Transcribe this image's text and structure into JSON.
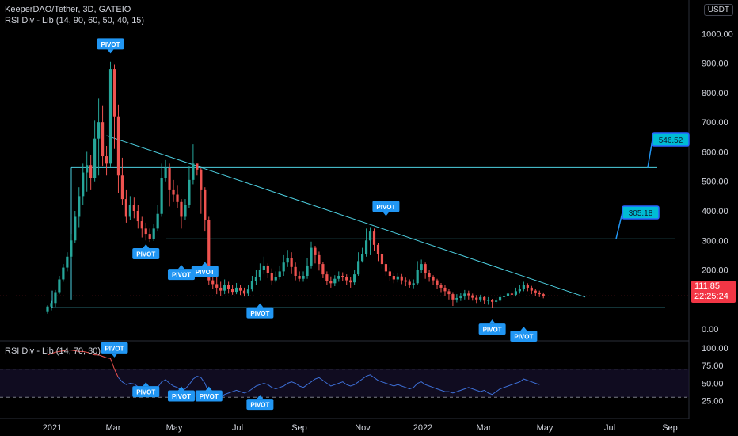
{
  "header": {
    "symbol_line": "KeeperDAO/Tether, 3D, GATEIO",
    "indicator_line": "RSI Div - Lib (14, 90, 60, 50, 40, 15)",
    "currency_badge": "USDT"
  },
  "rsi_panel": {
    "label": "RSI Div - Lib (14, 70, 30)"
  },
  "last_price": {
    "value": "111.85",
    "countdown": "22:25:24"
  },
  "colors": {
    "up": "#26a69a",
    "down": "#ef5350",
    "level": "#4dd0e1",
    "pivot": "#2196f3",
    "rsi_line": "#3d6fd6",
    "rsi_line_early": "#ef5350",
    "price_tag": "#f23645"
  },
  "chart_data": {
    "type": "candlestick",
    "title": "KeeperDAO/Tether, 3D, GATEIO",
    "y_price": {
      "range": [
        -40,
        1060
      ],
      "ticks": [
        "1000.00",
        "900.00",
        "800.00",
        "700.00",
        "600.00",
        "500.00",
        "400.00",
        "300.00",
        "200.00",
        "100.00",
        "0.00"
      ]
    },
    "x_axis": {
      "ticks": [
        "2021",
        "Mar",
        "May",
        "Jul",
        "Sep",
        "Nov",
        "2022",
        "Mar",
        "May",
        "Jul",
        "Sep"
      ]
    },
    "candles": [
      [
        60,
        76,
        52,
        80
      ],
      [
        76,
        88,
        63,
        95
      ],
      [
        88,
        125,
        75,
        132
      ],
      [
        125,
        168,
        118,
        180
      ],
      [
        168,
        208,
        160,
        220
      ],
      [
        208,
        245,
        195,
        260
      ],
      [
        245,
        300,
        238,
        322
      ],
      [
        300,
        380,
        290,
        400
      ],
      [
        380,
        450,
        345,
        480
      ],
      [
        450,
        530,
        420,
        560
      ],
      [
        530,
        555,
        465,
        600
      ],
      [
        555,
        510,
        470,
        590
      ],
      [
        510,
        645,
        500,
        705
      ],
      [
        645,
        700,
        520,
        780
      ],
      [
        700,
        585,
        550,
        755
      ],
      [
        585,
        560,
        520,
        620
      ],
      [
        560,
        880,
        548,
        905
      ],
      [
        880,
        720,
        610,
        895
      ],
      [
        720,
        520,
        460,
        760
      ],
      [
        520,
        440,
        420,
        580
      ],
      [
        440,
        380,
        360,
        470
      ],
      [
        380,
        420,
        370,
        450
      ],
      [
        420,
        400,
        375,
        445
      ],
      [
        400,
        365,
        340,
        420
      ],
      [
        365,
        340,
        310,
        380
      ],
      [
        340,
        322,
        300,
        360
      ],
      [
        322,
        305,
        295,
        340
      ],
      [
        305,
        340,
        298,
        356
      ],
      [
        340,
        390,
        330,
        420
      ],
      [
        390,
        510,
        380,
        560
      ],
      [
        510,
        545,
        500,
        572
      ],
      [
        545,
        470,
        415,
        560
      ],
      [
        470,
        455,
        430,
        505
      ],
      [
        455,
        430,
        410,
        485
      ],
      [
        430,
        380,
        340,
        440
      ],
      [
        380,
        420,
        370,
        440
      ],
      [
        420,
        505,
        410,
        550
      ],
      [
        505,
        560,
        490,
        625
      ],
      [
        560,
        540,
        520,
        560
      ],
      [
        540,
        470,
        390,
        545
      ],
      [
        470,
        370,
        330,
        480
      ],
      [
        370,
        165,
        150,
        380
      ],
      [
        165,
        152,
        135,
        205
      ],
      [
        152,
        140,
        118,
        175
      ],
      [
        140,
        130,
        112,
        160
      ],
      [
        130,
        148,
        118,
        168
      ],
      [
        148,
        136,
        120,
        160
      ],
      [
        136,
        126,
        116,
        148
      ],
      [
        126,
        140,
        118,
        156
      ],
      [
        140,
        130,
        115,
        150
      ],
      [
        130,
        120,
        110,
        140
      ],
      [
        120,
        134,
        112,
        150
      ],
      [
        134,
        162,
        128,
        180
      ],
      [
        162,
        175,
        150,
        200
      ],
      [
        175,
        200,
        165,
        222
      ],
      [
        200,
        215,
        186,
        245
      ],
      [
        215,
        190,
        172,
        222
      ],
      [
        190,
        165,
        150,
        205
      ],
      [
        165,
        176,
        158,
        195
      ],
      [
        176,
        195,
        168,
        215
      ],
      [
        195,
        225,
        180,
        250
      ],
      [
        225,
        240,
        210,
        268
      ],
      [
        240,
        210,
        186,
        260
      ],
      [
        210,
        180,
        165,
        225
      ],
      [
        180,
        170,
        160,
        195
      ],
      [
        170,
        180,
        160,
        195
      ],
      [
        180,
        215,
        170,
        240
      ],
      [
        215,
        275,
        205,
        296
      ],
      [
        275,
        250,
        222,
        282
      ],
      [
        250,
        220,
        198,
        262
      ],
      [
        220,
        185,
        172,
        228
      ],
      [
        185,
        162,
        148,
        195
      ],
      [
        162,
        155,
        140,
        178
      ],
      [
        155,
        170,
        145,
        182
      ],
      [
        170,
        180,
        160,
        195
      ],
      [
        180,
        175,
        162,
        192
      ],
      [
        175,
        165,
        148,
        185
      ],
      [
        165,
        158,
        140,
        176
      ],
      [
        158,
        185,
        150,
        200
      ],
      [
        185,
        230,
        180,
        260
      ],
      [
        230,
        255,
        225,
        275
      ],
      [
        255,
        300,
        245,
        340
      ],
      [
        300,
        330,
        250,
        345
      ],
      [
        330,
        285,
        265,
        340
      ],
      [
        285,
        255,
        230,
        292
      ],
      [
        255,
        220,
        205,
        265
      ],
      [
        220,
        195,
        180,
        230
      ],
      [
        195,
        180,
        162,
        208
      ],
      [
        180,
        168,
        155,
        188
      ],
      [
        168,
        178,
        158,
        190
      ],
      [
        178,
        165,
        152,
        186
      ],
      [
        165,
        160,
        145,
        174
      ],
      [
        160,
        150,
        140,
        168
      ],
      [
        150,
        155,
        138,
        168
      ],
      [
        155,
        200,
        150,
        230
      ],
      [
        200,
        220,
        190,
        235
      ],
      [
        220,
        190,
        170,
        225
      ],
      [
        190,
        175,
        160,
        200
      ],
      [
        175,
        165,
        150,
        182
      ],
      [
        165,
        148,
        135,
        170
      ],
      [
        148,
        140,
        125,
        156
      ],
      [
        140,
        128,
        112,
        150
      ],
      [
        128,
        118,
        100,
        135
      ],
      [
        118,
        100,
        78,
        125
      ],
      [
        100,
        105,
        90,
        118
      ],
      [
        105,
        110,
        95,
        122
      ],
      [
        110,
        120,
        100,
        132
      ],
      [
        120,
        114,
        100,
        130
      ],
      [
        114,
        106,
        96,
        120
      ],
      [
        106,
        100,
        88,
        115
      ],
      [
        100,
        108,
        92,
        116
      ],
      [
        108,
        96,
        86,
        112
      ],
      [
        96,
        98,
        82,
        108
      ],
      [
        98,
        92,
        72,
        102
      ],
      [
        92,
        96,
        85,
        106
      ],
      [
        96,
        108,
        90,
        118
      ],
      [
        108,
        112,
        100,
        124
      ],
      [
        112,
        120,
        104,
        130
      ],
      [
        120,
        116,
        105,
        128
      ],
      [
        116,
        128,
        110,
        140
      ],
      [
        128,
        136,
        120,
        148
      ],
      [
        136,
        150,
        128,
        160
      ],
      [
        150,
        140,
        128,
        155
      ],
      [
        140,
        130,
        118,
        146
      ],
      [
        130,
        124,
        112,
        136
      ],
      [
        124,
        118,
        108,
        130
      ],
      [
        118,
        112,
        104,
        124
      ]
    ],
    "levels": [
      {
        "price": 546.52,
        "label": "546.52"
      },
      {
        "price": 305.18,
        "label": "305.18"
      },
      {
        "price": 72
      }
    ],
    "trendline": {
      "from": {
        "candle": 15,
        "price": 655
      },
      "to": {
        "candle": 131,
        "price": 108
      }
    },
    "pivot_labels": [
      {
        "candle": 16,
        "price": 965,
        "text": "PIVOT",
        "pointer": "down"
      },
      {
        "candle": 25,
        "price": 255,
        "text": "PIVOT",
        "pointer": "up"
      },
      {
        "candle": 34,
        "price": 185,
        "text": "PIVOT",
        "pointer": "up"
      },
      {
        "candle": 40,
        "price": 195,
        "text": "PIVOT",
        "pointer": "up"
      },
      {
        "candle": 54,
        "price": 55,
        "text": "PIVOT",
        "pointer": "up"
      },
      {
        "candle": 86,
        "price": 415,
        "text": "PIVOT",
        "pointer": "down"
      },
      {
        "candle": 113,
        "price": 0,
        "text": "PIVOT",
        "pointer": "up"
      },
      {
        "candle": 121,
        "price": -24,
        "text": "PIVOT",
        "pointer": "up"
      }
    ],
    "rsi": {
      "range": [
        0,
        110
      ],
      "ticks": [
        "100.00",
        "75.00",
        "50.00",
        "25.00"
      ],
      "levels": [
        70,
        30
      ],
      "values": [
        90,
        92,
        94,
        95,
        96,
        97,
        97,
        96,
        95,
        95,
        94,
        92,
        90,
        90,
        88,
        86,
        85,
        70,
        58,
        52,
        48,
        50,
        49,
        45,
        42,
        40,
        38,
        40,
        44,
        52,
        55,
        50,
        46,
        44,
        40,
        42,
        48,
        56,
        60,
        58,
        50,
        36,
        30,
        28,
        30,
        34,
        36,
        38,
        40,
        38,
        36,
        38,
        42,
        46,
        48,
        50,
        48,
        44,
        42,
        44,
        46,
        50,
        52,
        50,
        46,
        44,
        48,
        52,
        56,
        58,
        54,
        50,
        46,
        48,
        50,
        52,
        48,
        46,
        48,
        52,
        56,
        60,
        62,
        58,
        54,
        52,
        50,
        48,
        46,
        48,
        46,
        44,
        42,
        44,
        50,
        52,
        48,
        46,
        44,
        42,
        40,
        38,
        38,
        36,
        38,
        40,
        42,
        44,
        42,
        40,
        38,
        40,
        36,
        34,
        38,
        42,
        44,
        46,
        48,
        50,
        52,
        56,
        54,
        52,
        50,
        48
      ],
      "pivot_labels": [
        {
          "index": 17,
          "value": 100,
          "text": "PIVOT",
          "pointer": "down"
        },
        {
          "index": 25,
          "value": 38,
          "text": "PIVOT",
          "pointer": "up"
        },
        {
          "index": 34,
          "value": 32,
          "text": "PIVOT",
          "pointer": "up"
        },
        {
          "index": 41,
          "value": 32,
          "text": "PIVOT",
          "pointer": "up"
        },
        {
          "index": 54,
          "value": 20,
          "text": "PIVOT",
          "pointer": "up"
        }
      ]
    }
  }
}
